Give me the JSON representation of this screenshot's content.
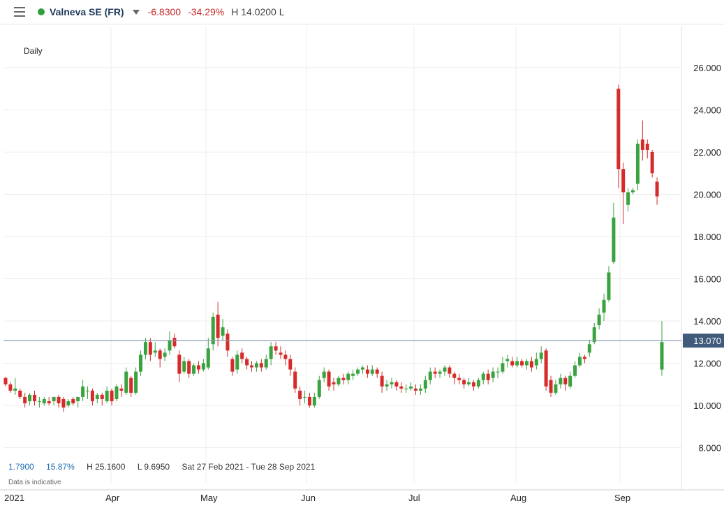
{
  "header": {
    "menu_icon": "menu-icon",
    "status_color": "#2e9e3e",
    "instrument": "Valneva SE (FR)",
    "change": "-6.8300",
    "change_pct": "-34.29%",
    "high_low": "H 14.0200 L"
  },
  "period": "Daily",
  "footer": {
    "range_change": "1.7900",
    "range_pct": "15.87%",
    "high": "H 25.1600",
    "low": "L 9.6950",
    "date_range": "Sat 27 Feb 2021 - Tue 28 Sep 2021",
    "disclaimer": "Data is indicative"
  },
  "colors": {
    "up": "#3aa23f",
    "down": "#d62b2b",
    "price_line": "#8a9bb0",
    "price_tag": "#3f5a7a"
  },
  "chart_data": {
    "type": "candlestick",
    "ylim": [
      6.5,
      27.2
    ],
    "y_ticks": [
      "8.000",
      "10.000",
      "12.000",
      "14.000",
      "16.000",
      "18.000",
      "20.000",
      "22.000",
      "24.000",
      "26.000"
    ],
    "x_labels": [
      "2021",
      "Apr",
      "May",
      "Jun",
      "Jul",
      "Aug",
      "Sep"
    ],
    "current_price": "13.070",
    "grid": true,
    "candles": [
      [
        11.3,
        11.0,
        11.35,
        10.9
      ],
      [
        11.0,
        10.7,
        11.1,
        10.6
      ],
      [
        10.7,
        10.8,
        11.3,
        10.5
      ],
      [
        10.7,
        10.4,
        10.8,
        10.3
      ],
      [
        10.4,
        10.1,
        10.6,
        9.9
      ],
      [
        10.2,
        10.5,
        10.6,
        10.0
      ],
      [
        10.5,
        10.2,
        10.7,
        10.0
      ],
      [
        10.2,
        10.2,
        10.4,
        9.9
      ],
      [
        10.1,
        10.3,
        10.4,
        10.0
      ],
      [
        10.2,
        10.1,
        10.4,
        10.0
      ],
      [
        10.2,
        10.4,
        10.4,
        10.0
      ],
      [
        10.4,
        10.1,
        10.5,
        9.9
      ],
      [
        10.3,
        9.9,
        10.4,
        9.7
      ],
      [
        10.0,
        10.2,
        10.3,
        9.9
      ],
      [
        10.3,
        10.1,
        10.4,
        10.0
      ],
      [
        10.2,
        10.4,
        10.4,
        9.9
      ],
      [
        10.4,
        10.9,
        11.2,
        10.2
      ],
      [
        10.7,
        10.7,
        10.9,
        10.3
      ],
      [
        10.7,
        10.2,
        10.8,
        10.0
      ],
      [
        10.3,
        10.5,
        10.6,
        10.1
      ],
      [
        10.5,
        10.3,
        10.6,
        10.0
      ],
      [
        10.2,
        10.7,
        10.9,
        10.1
      ],
      [
        10.7,
        10.2,
        10.8,
        10.0
      ],
      [
        10.3,
        10.9,
        11.0,
        10.2
      ],
      [
        10.8,
        10.7,
        11.0,
        10.4
      ],
      [
        10.6,
        11.6,
        11.8,
        10.5
      ],
      [
        11.3,
        10.6,
        11.4,
        10.4
      ],
      [
        10.6,
        11.6,
        11.8,
        10.5
      ],
      [
        11.6,
        12.4,
        12.6,
        11.4
      ],
      [
        12.4,
        13.0,
        13.2,
        12.2
      ],
      [
        13.0,
        12.4,
        13.2,
        12.1
      ],
      [
        12.5,
        12.6,
        13.0,
        12.3
      ],
      [
        12.6,
        12.2,
        12.7,
        11.8
      ],
      [
        12.3,
        12.5,
        12.7,
        12.1
      ],
      [
        12.6,
        13.1,
        13.5,
        12.4
      ],
      [
        13.2,
        12.8,
        13.4,
        12.7
      ],
      [
        12.4,
        11.5,
        12.6,
        11.1
      ],
      [
        11.6,
        12.1,
        12.3,
        11.5
      ],
      [
        12.1,
        11.5,
        12.2,
        11.3
      ],
      [
        11.5,
        11.9,
        12.0,
        11.4
      ],
      [
        11.9,
        11.7,
        12.1,
        11.5
      ],
      [
        11.7,
        12.0,
        12.2,
        11.6
      ],
      [
        11.8,
        12.7,
        13.2,
        11.7
      ],
      [
        12.9,
        14.2,
        14.4,
        12.6
      ],
      [
        14.3,
        13.2,
        14.9,
        12.8
      ],
      [
        13.3,
        13.7,
        14.1,
        13.1
      ],
      [
        13.4,
        12.6,
        13.6,
        12.3
      ],
      [
        12.2,
        11.6,
        12.3,
        11.4
      ],
      [
        11.7,
        12.4,
        12.6,
        11.5
      ],
      [
        12.5,
        12.2,
        12.7,
        12.0
      ],
      [
        12.2,
        11.9,
        12.3,
        11.7
      ],
      [
        11.9,
        11.8,
        12.1,
        11.6
      ],
      [
        11.8,
        12.0,
        12.1,
        11.6
      ],
      [
        12.0,
        11.8,
        12.2,
        11.6
      ],
      [
        11.8,
        12.2,
        12.4,
        11.7
      ],
      [
        12.2,
        12.8,
        13.0,
        11.9
      ],
      [
        12.8,
        12.6,
        13.0,
        12.4
      ],
      [
        12.5,
        12.4,
        12.8,
        12.2
      ],
      [
        12.4,
        12.2,
        12.6,
        11.9
      ],
      [
        12.2,
        11.7,
        12.4,
        11.4
      ],
      [
        11.6,
        10.8,
        11.8,
        10.6
      ],
      [
        10.7,
        10.3,
        10.9,
        10.0
      ],
      [
        10.4,
        10.4,
        10.7,
        10.1
      ],
      [
        10.4,
        10.0,
        10.6,
        9.9
      ],
      [
        10.0,
        10.4,
        10.6,
        9.9
      ],
      [
        10.4,
        11.2,
        11.4,
        10.3
      ],
      [
        11.3,
        11.6,
        11.8,
        11.1
      ],
      [
        11.6,
        10.9,
        11.7,
        10.7
      ],
      [
        11.1,
        11.0,
        11.3,
        10.7
      ],
      [
        11.0,
        11.3,
        11.4,
        10.9
      ],
      [
        11.3,
        11.2,
        11.5,
        11.0
      ],
      [
        11.2,
        11.5,
        11.6,
        11.0
      ],
      [
        11.4,
        11.5,
        11.7,
        11.2
      ],
      [
        11.5,
        11.7,
        11.8,
        11.4
      ],
      [
        11.7,
        11.8,
        11.9,
        11.5
      ],
      [
        11.7,
        11.5,
        11.9,
        11.3
      ],
      [
        11.5,
        11.7,
        11.9,
        11.4
      ],
      [
        11.7,
        11.5,
        11.8,
        11.3
      ],
      [
        11.4,
        10.9,
        11.6,
        10.6
      ],
      [
        10.9,
        11.0,
        11.2,
        10.7
      ],
      [
        11.0,
        11.1,
        11.3,
        10.8
      ],
      [
        11.1,
        10.9,
        11.2,
        10.7
      ],
      [
        10.9,
        10.8,
        11.1,
        10.6
      ],
      [
        10.8,
        10.8,
        11.0,
        10.6
      ],
      [
        10.8,
        10.9,
        11.1,
        10.7
      ],
      [
        10.8,
        10.7,
        11.0,
        10.5
      ],
      [
        10.7,
        10.8,
        11.0,
        10.5
      ],
      [
        10.8,
        11.2,
        11.4,
        10.6
      ],
      [
        11.2,
        11.6,
        11.8,
        11.0
      ],
      [
        11.6,
        11.5,
        11.8,
        11.3
      ],
      [
        11.5,
        11.6,
        11.7,
        11.3
      ],
      [
        11.6,
        11.8,
        11.9,
        11.4
      ],
      [
        11.8,
        11.5,
        11.9,
        11.3
      ],
      [
        11.5,
        11.3,
        11.6,
        11.0
      ],
      [
        11.3,
        11.2,
        11.5,
        11.0
      ],
      [
        11.2,
        11.0,
        11.3,
        10.8
      ],
      [
        11.0,
        11.1,
        11.3,
        10.9
      ],
      [
        11.1,
        10.9,
        11.2,
        10.7
      ],
      [
        10.9,
        11.2,
        11.3,
        10.8
      ],
      [
        11.2,
        11.5,
        11.6,
        11.0
      ],
      [
        11.5,
        11.2,
        11.7,
        11.0
      ],
      [
        11.3,
        11.6,
        11.8,
        11.1
      ],
      [
        11.6,
        11.6,
        11.8,
        11.3
      ],
      [
        11.6,
        12.0,
        12.3,
        11.5
      ],
      [
        12.1,
        12.2,
        12.4,
        11.8
      ],
      [
        12.1,
        11.9,
        12.3,
        11.8
      ],
      [
        11.9,
        12.1,
        12.3,
        11.8
      ],
      [
        12.1,
        11.9,
        12.2,
        11.8
      ],
      [
        11.9,
        12.1,
        12.2,
        11.7
      ],
      [
        12.1,
        11.8,
        12.3,
        11.6
      ],
      [
        11.9,
        12.2,
        12.5,
        11.7
      ],
      [
        12.2,
        12.5,
        12.8,
        12.0
      ],
      [
        12.6,
        10.9,
        12.7,
        10.7
      ],
      [
        11.2,
        10.6,
        11.4,
        10.4
      ],
      [
        10.6,
        11.0,
        11.2,
        10.5
      ],
      [
        11.0,
        11.3,
        11.5,
        10.8
      ],
      [
        11.3,
        11.0,
        11.4,
        10.7
      ],
      [
        10.9,
        11.4,
        11.6,
        10.8
      ],
      [
        11.4,
        11.9,
        12.1,
        11.3
      ],
      [
        11.9,
        12.3,
        12.5,
        11.8
      ],
      [
        12.3,
        12.2,
        12.4,
        12.0
      ],
      [
        12.5,
        12.9,
        13.1,
        12.3
      ],
      [
        13.0,
        13.7,
        13.9,
        12.9
      ],
      [
        13.8,
        14.3,
        14.6,
        13.6
      ],
      [
        14.4,
        15.0,
        15.3,
        14.0
      ],
      [
        15.0,
        16.3,
        16.6,
        14.9
      ],
      [
        16.8,
        18.9,
        19.6,
        16.7
      ],
      [
        25.0,
        21.2,
        25.2,
        20.3
      ],
      [
        21.2,
        20.1,
        21.5,
        18.6
      ],
      [
        19.5,
        20.1,
        20.3,
        19.2
      ],
      [
        20.1,
        20.2,
        20.3,
        20.0
      ],
      [
        20.5,
        22.4,
        22.6,
        20.2
      ],
      [
        22.6,
        22.1,
        23.5,
        21.6
      ],
      [
        22.4,
        22.1,
        22.6,
        21.7
      ],
      [
        22.0,
        21.0,
        22.1,
        20.8
      ],
      [
        20.6,
        19.9,
        20.8,
        19.5
      ],
      [
        11.7,
        13.0,
        14.0,
        11.4
      ]
    ]
  }
}
